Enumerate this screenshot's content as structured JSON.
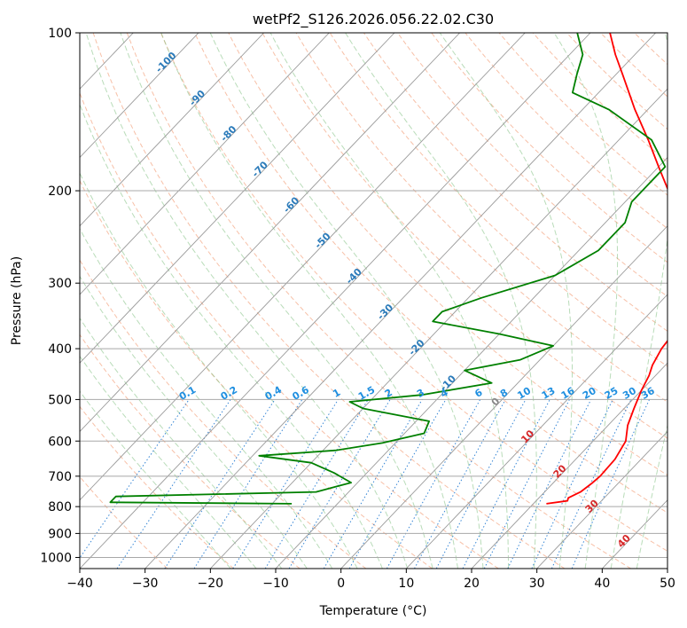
{
  "chart_data": {
    "type": "line",
    "title": "wetPf2_S126.2026.056.22.02.C30",
    "xlabel": "Temperature (°C)",
    "ylabel": "Pressure (hPa)",
    "xlim": [
      -40,
      50
    ],
    "ylim": [
      1050,
      100
    ],
    "y_scale": "log",
    "grid": true,
    "x_ticks": [
      -40,
      -30,
      -20,
      -10,
      0,
      10,
      20,
      30,
      40,
      50
    ],
    "y_ticks": [
      100,
      200,
      300,
      400,
      500,
      600,
      700,
      800,
      900,
      1000
    ],
    "skew_t": true,
    "series": [
      {
        "color": "#ff0000",
        "points": [
          {
            "p": 790,
            "t": 22.0
          },
          {
            "p": 780,
            "t": 24.8
          },
          {
            "p": 770,
            "t": 24.5
          },
          {
            "p": 750,
            "t": 25.5
          },
          {
            "p": 720,
            "t": 26.0
          },
          {
            "p": 700,
            "t": 26.2
          },
          {
            "p": 650,
            "t": 26.0
          },
          {
            "p": 600,
            "t": 25.0
          },
          {
            "p": 560,
            "t": 23.0
          },
          {
            "p": 520,
            "t": 21.5
          },
          {
            "p": 480,
            "t": 20.0
          },
          {
            "p": 450,
            "t": 19.0
          },
          {
            "p": 430,
            "t": 18.0
          },
          {
            "p": 400,
            "t": 17.0
          },
          {
            "p": 370,
            "t": 16.5
          },
          {
            "p": 340,
            "t": 15.5
          },
          {
            "p": 300,
            "t": 12.0
          },
          {
            "p": 260,
            "t": 7.0
          },
          {
            "p": 230,
            "t": 1.5
          },
          {
            "p": 200,
            "t": -5.0
          },
          {
            "p": 180,
            "t": -10.0
          },
          {
            "p": 160,
            "t": -15.5
          },
          {
            "p": 140,
            "t": -22.0
          },
          {
            "p": 120,
            "t": -29.0
          },
          {
            "p": 110,
            "t": -33.0
          },
          {
            "p": 100,
            "t": -37.0
          }
        ]
      },
      {
        "color": "#008000",
        "points": [
          {
            "p": 790,
            "t": -17.0
          },
          {
            "p": 785,
            "t": -45.0
          },
          {
            "p": 765,
            "t": -45.0
          },
          {
            "p": 750,
            "t": -15.0
          },
          {
            "p": 720,
            "t": -11.0
          },
          {
            "p": 690,
            "t": -15.0
          },
          {
            "p": 660,
            "t": -20.0
          },
          {
            "p": 640,
            "t": -29.0
          },
          {
            "p": 625,
            "t": -18.0
          },
          {
            "p": 605,
            "t": -12.0
          },
          {
            "p": 580,
            "t": -7.0
          },
          {
            "p": 550,
            "t": -8.0
          },
          {
            "p": 520,
            "t": -20.0
          },
          {
            "p": 505,
            "t": -23.0
          },
          {
            "p": 490,
            "t": -13.0
          },
          {
            "p": 465,
            "t": -4.0
          },
          {
            "p": 440,
            "t": -10.0
          },
          {
            "p": 420,
            "t": -3.0
          },
          {
            "p": 395,
            "t": 0.0
          },
          {
            "p": 375,
            "t": -10.0
          },
          {
            "p": 355,
            "t": -22.0
          },
          {
            "p": 340,
            "t": -22.0
          },
          {
            "p": 320,
            "t": -18.0
          },
          {
            "p": 290,
            "t": -10.0
          },
          {
            "p": 260,
            "t": -7.0
          },
          {
            "p": 230,
            "t": -7.0
          },
          {
            "p": 210,
            "t": -9.0
          },
          {
            "p": 195,
            "t": -9.0
          },
          {
            "p": 180,
            "t": -9.0
          },
          {
            "p": 160,
            "t": -15.0
          },
          {
            "p": 140,
            "t": -26.0
          },
          {
            "p": 130,
            "t": -34.0
          },
          {
            "p": 120,
            "t": -36.0
          },
          {
            "p": 110,
            "t": -38.0
          },
          {
            "p": 100,
            "t": -42.0
          }
        ]
      }
    ],
    "isotherm_labels": [
      "-100",
      "-90",
      "-80",
      "-70",
      "-60",
      "-50",
      "-40",
      "-30",
      "-20",
      "-10",
      "0",
      "10",
      "20",
      "30",
      "40"
    ],
    "mixing_ratio_labels": [
      "0.1",
      "0.2",
      "0.4",
      "0.6",
      "1",
      "1.5",
      "2",
      "3",
      "4",
      "6",
      "8",
      "10",
      "13",
      "16",
      "20",
      "25",
      "30",
      "36"
    ]
  }
}
